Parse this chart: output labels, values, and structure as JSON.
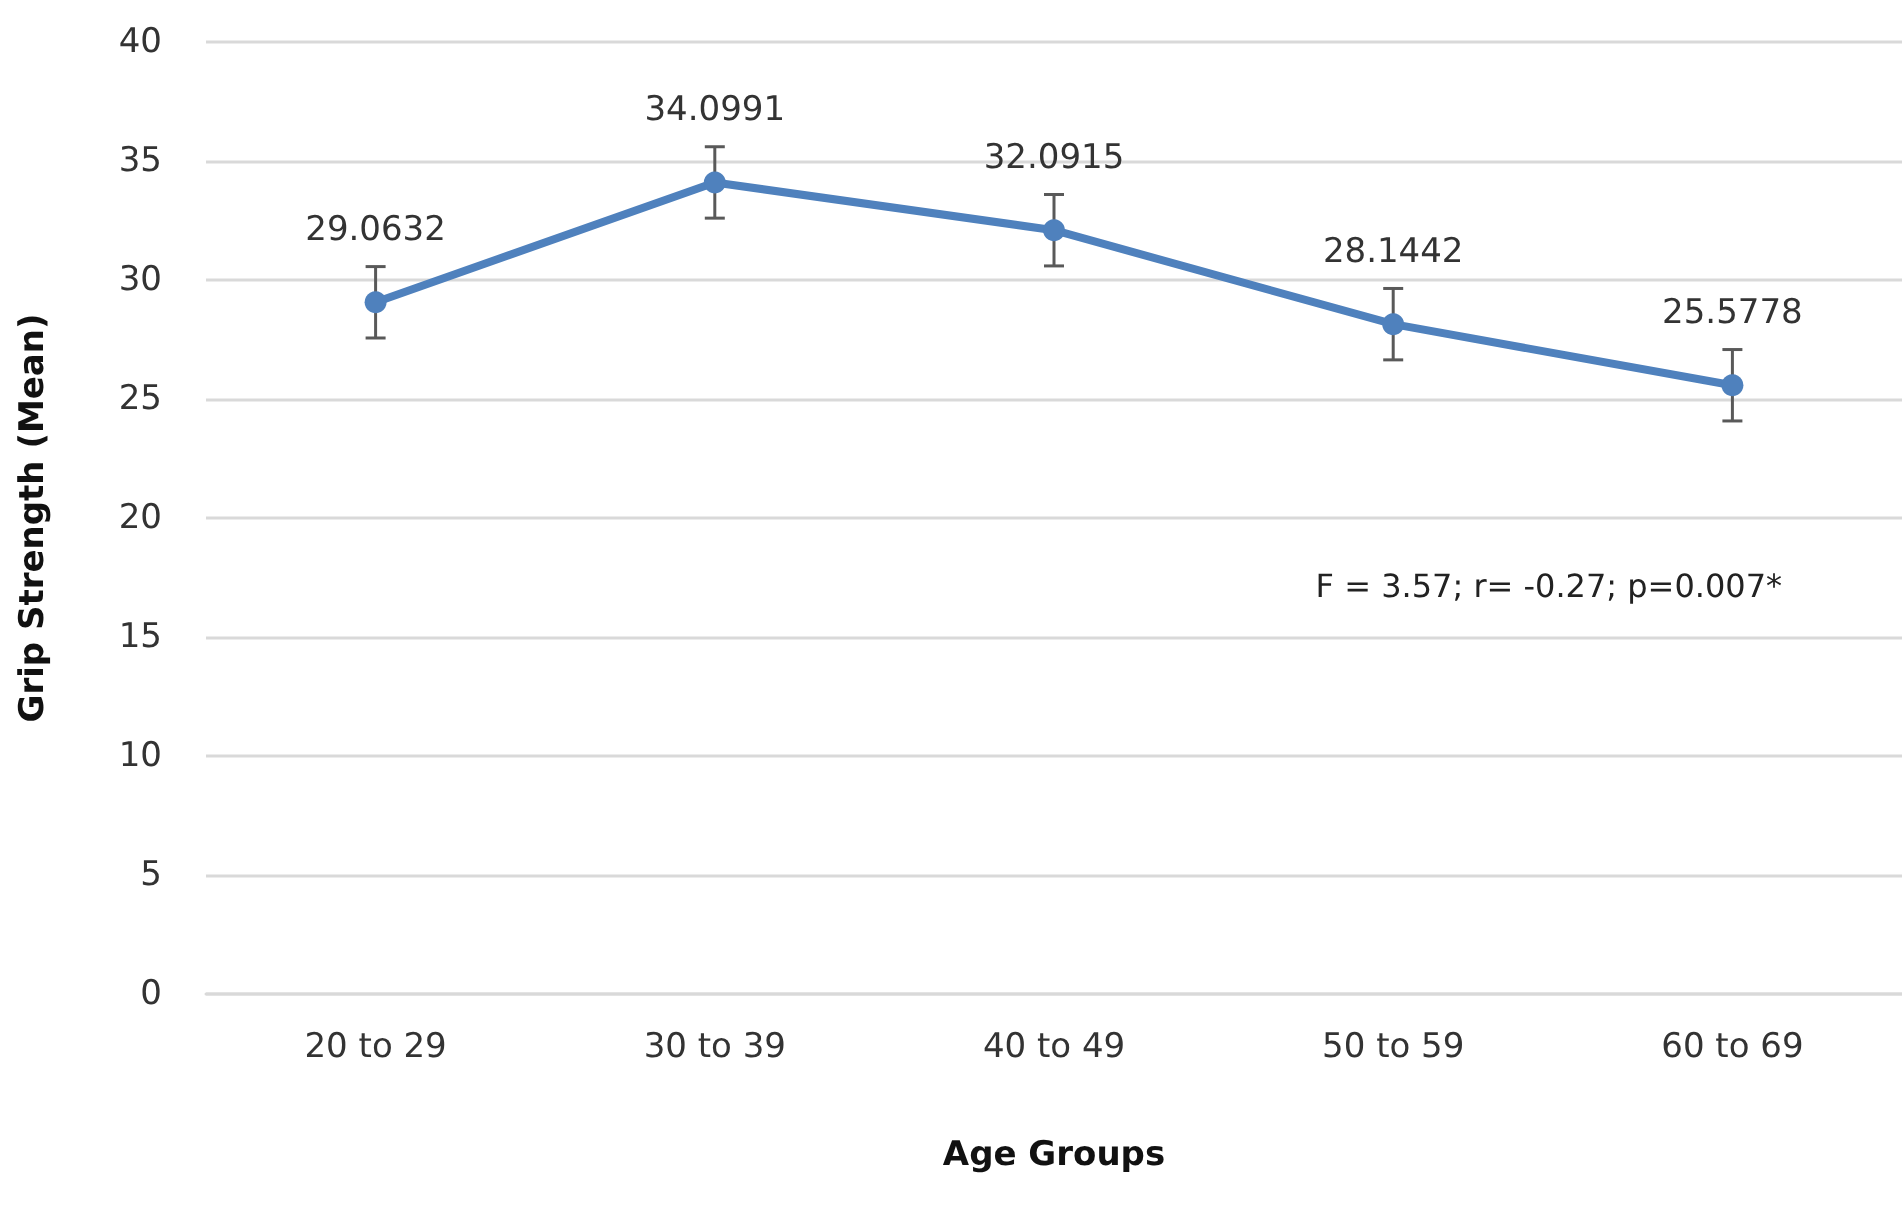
{
  "chart_data": {
    "type": "line",
    "xlabel": "Age Groups",
    "ylabel": "Grip Strength (Mean)",
    "categories": [
      "20 to 29",
      "30 to 39",
      "40 to 49",
      "50 to 59",
      "60 to 69"
    ],
    "series": [
      {
        "color": "#4f81bd",
        "values": [
          29.0632,
          34.0991,
          32.0915,
          28.1442,
          25.5778
        ],
        "errors": [
          1.5,
          1.5,
          1.5,
          1.5,
          1.5
        ]
      }
    ],
    "ylim": [
      0,
      40
    ],
    "yticks": [
      0,
      5,
      10,
      15,
      20,
      25,
      30,
      35,
      40
    ],
    "grid": "y",
    "marker": "circle",
    "line_style": "solid",
    "data_labels": true,
    "legend": false,
    "annotations": [
      "F = 3.57; r= -0.27; p=0.007*"
    ]
  }
}
